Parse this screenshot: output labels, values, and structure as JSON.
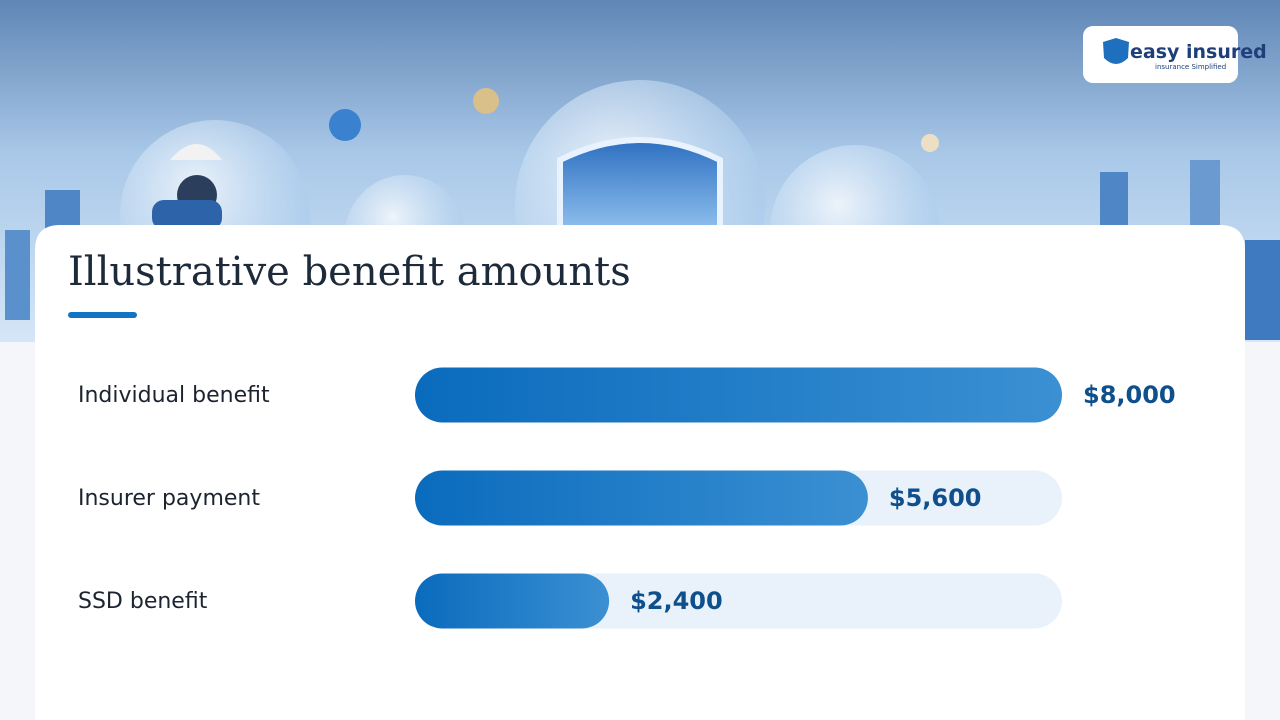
{
  "logo": {
    "name": "easy insured",
    "tagline": "insurance Simplified"
  },
  "chart_data": {
    "type": "bar",
    "orientation": "horizontal",
    "title": "Illustrative benefit amounts",
    "categories": [
      "Individual benefit",
      "Insurer payment",
      "SSD benefit"
    ],
    "values": [
      8000,
      5600,
      2400
    ],
    "value_labels": [
      "$8,000",
      "$5,600",
      "$2,400"
    ],
    "xlim": [
      0,
      8000
    ],
    "color": "#1474c4"
  }
}
